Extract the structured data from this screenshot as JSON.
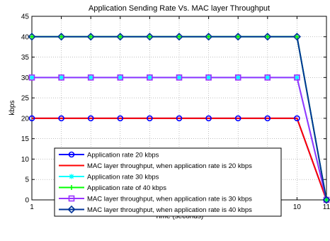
{
  "chart_data": {
    "type": "line",
    "title": "Application Sending Rate Vs. MAC layer Throughput",
    "xlabel": "Time (seconds)",
    "ylabel": "kbps",
    "xlim": [
      1,
      11
    ],
    "ylim": [
      0,
      45
    ],
    "x_ticks": [
      1,
      2,
      3,
      4,
      5,
      6,
      7,
      8,
      9,
      10,
      11
    ],
    "y_ticks": [
      0,
      5,
      10,
      15,
      20,
      25,
      30,
      35,
      40,
      45
    ],
    "grid": true,
    "legend_position": "bottom-center",
    "x": [
      1,
      2,
      3,
      4,
      5,
      6,
      7,
      8,
      9,
      10,
      11
    ],
    "series": [
      {
        "name": "Application rate 20 kbps",
        "color": "#0000ff",
        "marker": "circle",
        "values": [
          20,
          20,
          20,
          20,
          20,
          20,
          20,
          20,
          20,
          20,
          0
        ]
      },
      {
        "name": "MAC layer throughput, when application rate is 20 kbps",
        "color": "#ff0000",
        "marker": "none",
        "values": [
          20,
          20,
          20,
          20,
          20,
          20,
          20,
          20,
          20,
          20,
          0
        ]
      },
      {
        "name": "Application rate 30 kbps",
        "color": "#00ffff",
        "marker": "star",
        "values": [
          30,
          30,
          30,
          30,
          30,
          30,
          30,
          30,
          30,
          30,
          0
        ]
      },
      {
        "name": "Application rate of 40 kbps",
        "color": "#00ff00",
        "marker": "plus",
        "values": [
          40,
          40,
          40,
          40,
          40,
          40,
          40,
          40,
          40,
          40,
          0
        ]
      },
      {
        "name": "MAC layer throughput, when application rate is 30 kbps",
        "color": "#9933ff",
        "marker": "square",
        "values": [
          30,
          30,
          30,
          30,
          30,
          30,
          30,
          30,
          30,
          30,
          0
        ]
      },
      {
        "name": "MAC layer throughput, when application rate is 40 kbps",
        "color": "#003399",
        "marker": "diamond",
        "values": [
          40,
          40,
          40,
          40,
          40,
          40,
          40,
          40,
          40,
          40,
          0
        ]
      }
    ]
  }
}
